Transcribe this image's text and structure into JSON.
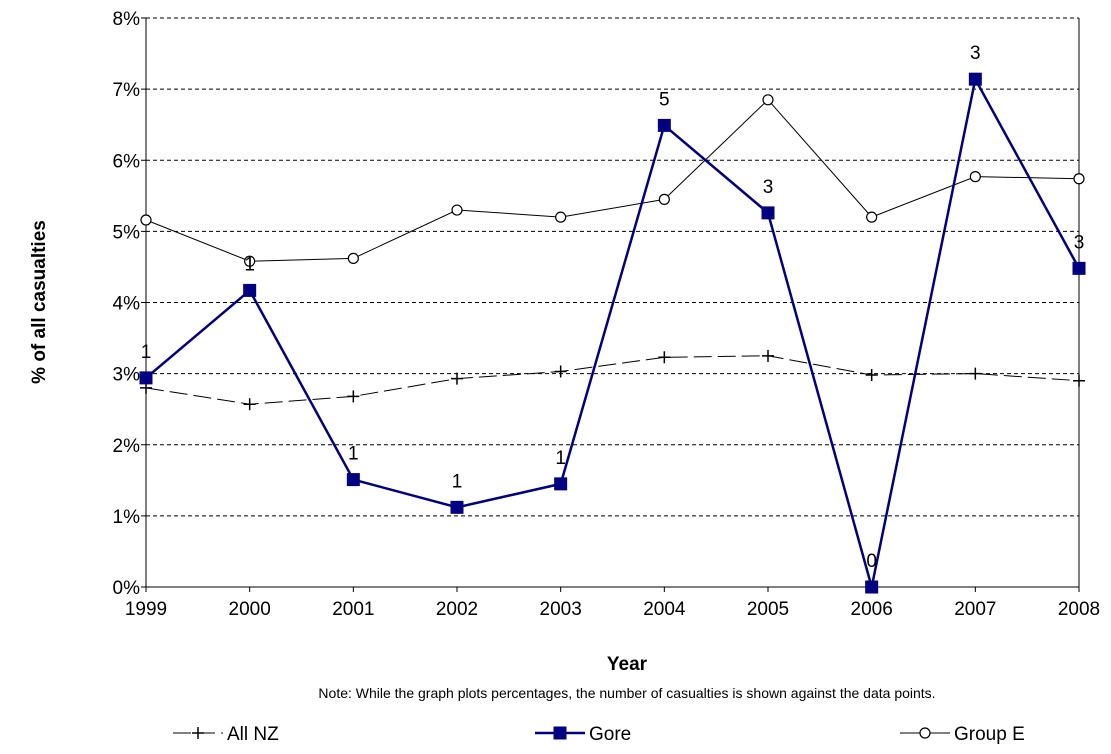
{
  "chart_data": {
    "type": "line",
    "xlabel": "Year",
    "ylabel": "% of all casualties",
    "note": "Note: While the graph plots percentages, the number of casualties is shown against the data points.",
    "categories": [
      "1999",
      "2000",
      "2001",
      "2002",
      "2003",
      "2004",
      "2005",
      "2006",
      "2007",
      "2008"
    ],
    "y_ticks": [
      "0%",
      "1%",
      "2%",
      "3%",
      "4%",
      "5%",
      "6%",
      "7%",
      "8%"
    ],
    "ylim": [
      0,
      8
    ],
    "grid": "horizontal dashed",
    "legend_position": "bottom",
    "series": [
      {
        "name": "All NZ",
        "marker": "plus",
        "line_style": "dashed",
        "color": "#000000",
        "values": [
          2.8,
          2.57,
          2.68,
          2.93,
          3.03,
          3.23,
          3.25,
          2.98,
          3.0,
          2.9
        ],
        "point_labels": []
      },
      {
        "name": "Gore",
        "marker": "square",
        "line_style": "solid",
        "color": "#000080",
        "values": [
          2.94,
          4.17,
          1.51,
          1.12,
          1.45,
          6.49,
          5.26,
          0.0,
          7.14,
          4.48
        ],
        "point_labels": [
          "1",
          "1",
          "1",
          "1",
          "1",
          "5",
          "3",
          "0",
          "3",
          "3"
        ]
      },
      {
        "name": "Group E",
        "marker": "circle",
        "line_style": "solid",
        "color": "#000000",
        "values": [
          5.16,
          4.58,
          4.62,
          5.3,
          5.2,
          5.45,
          6.85,
          5.2,
          5.77,
          5.74
        ],
        "point_labels": []
      }
    ]
  }
}
